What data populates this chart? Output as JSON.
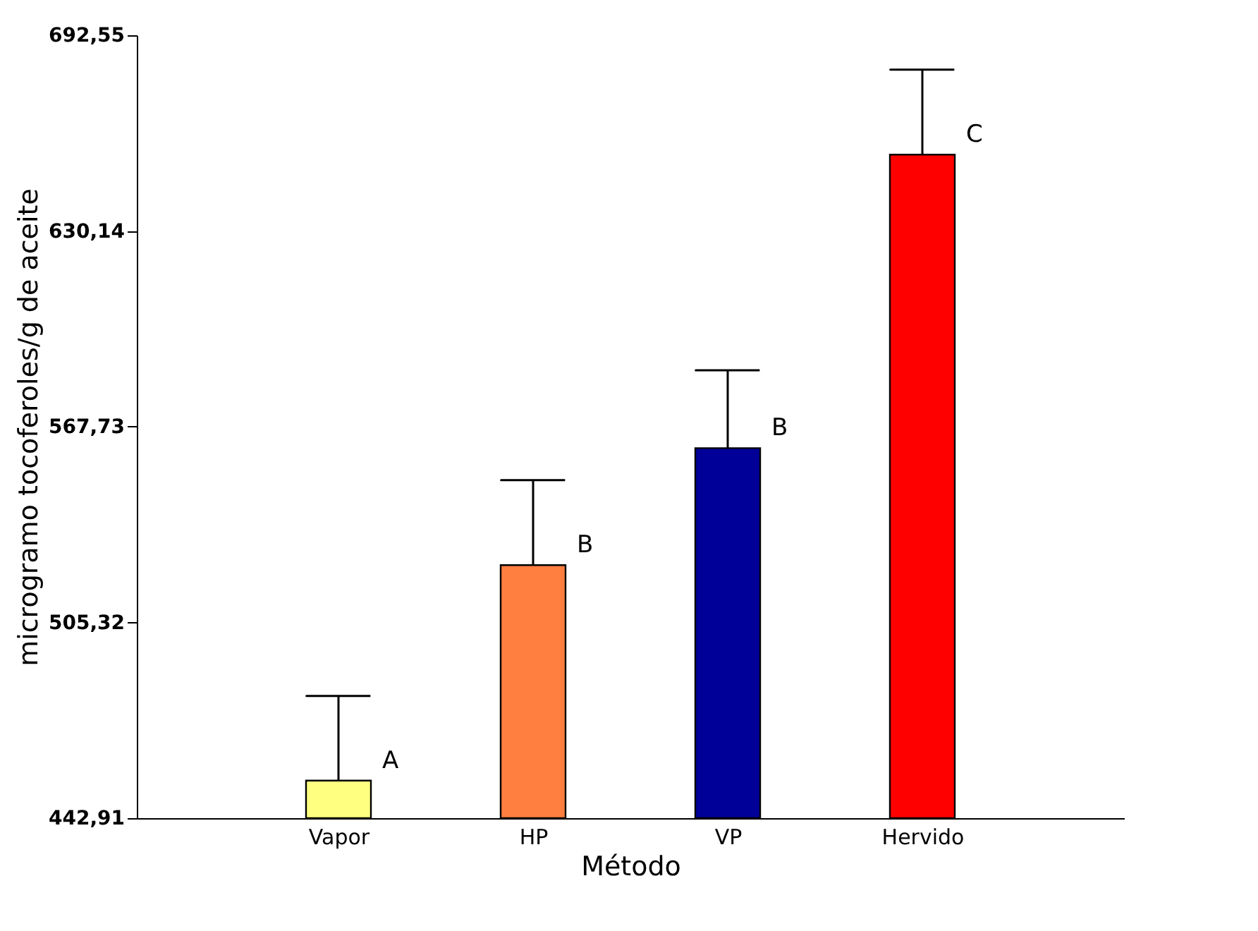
{
  "chart_data": {
    "type": "bar",
    "xlabel": "Método",
    "ylabel": "microgramo tocoferoles/g de aceite",
    "categories": [
      "Vapor",
      "HP",
      "VP",
      "Hervido"
    ],
    "values": [
      454.9,
      523.6,
      560.9,
      654.5
    ],
    "colors": [
      "#ffff80",
      "#ff7f40",
      "#000099",
      "#ff0000"
    ],
    "errors": [
      [
        454.9,
        481.9
      ],
      [
        523.6,
        550.7
      ],
      [
        560.9,
        585.7
      ],
      [
        654.5,
        681.6
      ]
    ],
    "ylim": [
      442.91,
      692.55
    ],
    "yticks": [
      {
        "value": 442.91,
        "label": "442,91"
      },
      {
        "value": 505.32,
        "label": "505,32"
      },
      {
        "value": 567.73,
        "label": "567,73"
      },
      {
        "value": 630.14,
        "label": "630,14"
      },
      {
        "value": 692.55,
        "label": "692,55"
      }
    ],
    "annotations": [
      {
        "text": "A",
        "x": "Vapor",
        "y": 454.9
      },
      {
        "text": "B",
        "x": "HP",
        "y": 523.6
      },
      {
        "text": "B",
        "x": "VP",
        "y": 560.9
      },
      {
        "text": "C",
        "x": "Hervido",
        "y": 654.5
      }
    ],
    "grid": false
  }
}
